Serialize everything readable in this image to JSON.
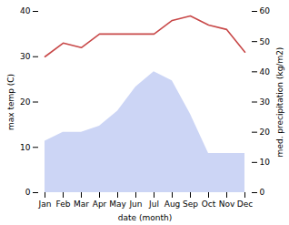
{
  "chart_data": {
    "type": "line",
    "xlabel": "date (month)",
    "ylabel": "max temp (C)",
    "y2label": "med. precipitation (kg/m2)",
    "categories": [
      "Jan",
      "Feb",
      "Mar",
      "Apr",
      "May",
      "Jun",
      "Jul",
      "Aug",
      "Sep",
      "Oct",
      "Nov",
      "Dec"
    ],
    "series": [
      {
        "type": "area",
        "axis": "y2",
        "color": "#b0bef0",
        "values": [
          17,
          20,
          20,
          22,
          27,
          35,
          40,
          37,
          26,
          13,
          13,
          13
        ]
      },
      {
        "type": "line",
        "color": "#c84848",
        "values": [
          30,
          33,
          32,
          35,
          35,
          35,
          35,
          38,
          39,
          37,
          36,
          31
        ]
      }
    ],
    "ylim": [
      0,
      40
    ],
    "yticks": [
      0,
      10,
      20,
      30,
      40
    ],
    "y2lim": [
      0,
      60
    ],
    "y2ticks": [
      0,
      10,
      20,
      30,
      40,
      50,
      60
    ],
    "grid": false
  }
}
